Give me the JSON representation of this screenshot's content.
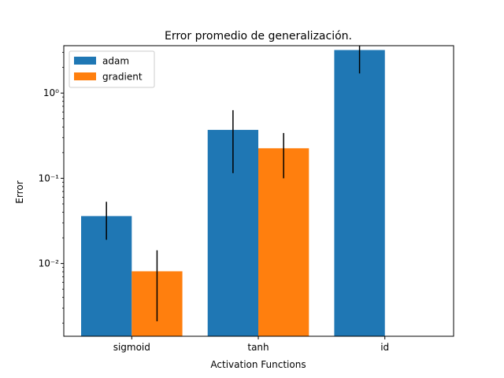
{
  "chart_data": {
    "type": "bar",
    "title": "Error promedio de generalización.",
    "xlabel": "Activation Functions",
    "ylabel": "Error",
    "yscale": "log",
    "ylim": [
      0.0014,
      3.6
    ],
    "grid": false,
    "legend_position": "top-left",
    "categories": [
      "sigmoid",
      "tanh",
      "id"
    ],
    "series": [
      {
        "name": "adam",
        "color": "#1f77b4",
        "values": [
          0.036,
          0.37,
          3.2
        ],
        "error_low": [
          0.019,
          0.115,
          1.7
        ],
        "error_high": [
          0.053,
          0.63,
          3.6
        ]
      },
      {
        "name": "gradient",
        "color": "#ff7f0e",
        "values": [
          0.0081,
          0.225,
          null
        ],
        "error_low": [
          0.0021,
          0.1,
          null
        ],
        "error_high": [
          0.0143,
          0.34,
          null
        ]
      }
    ],
    "y_ticks": [
      {
        "value": 0.01,
        "label": "10⁻²"
      },
      {
        "value": 0.1,
        "label": "10⁻¹"
      },
      {
        "value": 1,
        "label": "10⁰"
      }
    ]
  }
}
